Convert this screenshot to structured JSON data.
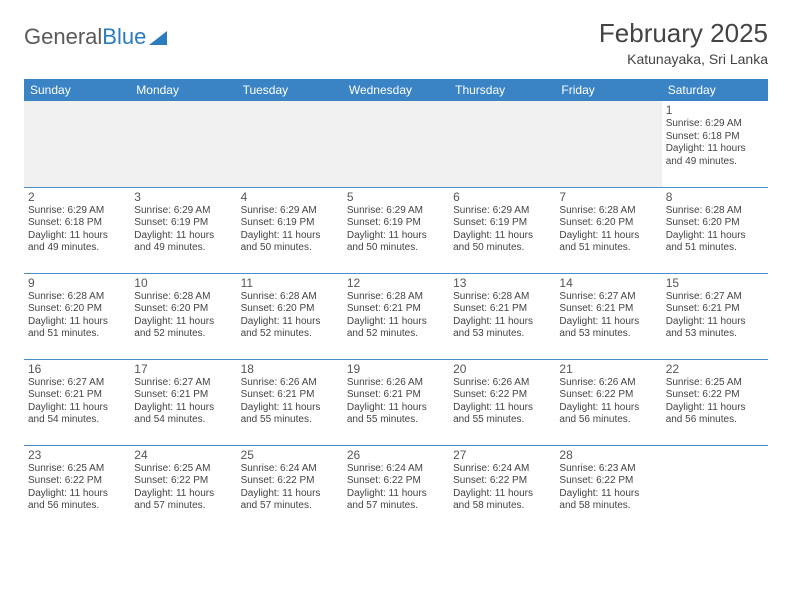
{
  "brand": {
    "part1": "General",
    "part2": "Blue"
  },
  "title": "February 2025",
  "location": "Katunayaka, Sri Lanka",
  "colors": {
    "header_bg": "#3a84c5",
    "header_text": "#ffffff",
    "row_border": "#4b8fc6",
    "empty_bg": "#f0f0f0",
    "page_bg": "#ffffff",
    "text": "#333333",
    "brand_gray": "#5a5a5a",
    "brand_blue": "#2b7bbf"
  },
  "layout": {
    "columns": 7,
    "rows": 5,
    "daynum_fontsize": 12,
    "info_fontsize": 10,
    "header_fontsize": 12,
    "title_fontsize": 26,
    "location_fontsize": 14
  },
  "weekdays": [
    "Sunday",
    "Monday",
    "Tuesday",
    "Wednesday",
    "Thursday",
    "Friday",
    "Saturday"
  ],
  "weeks": [
    [
      null,
      null,
      null,
      null,
      null,
      null,
      {
        "d": "1",
        "sr": "Sunrise: 6:29 AM",
        "ss": "Sunset: 6:18 PM",
        "dl": "Daylight: 11 hours and 49 minutes."
      }
    ],
    [
      {
        "d": "2",
        "sr": "Sunrise: 6:29 AM",
        "ss": "Sunset: 6:18 PM",
        "dl": "Daylight: 11 hours and 49 minutes."
      },
      {
        "d": "3",
        "sr": "Sunrise: 6:29 AM",
        "ss": "Sunset: 6:19 PM",
        "dl": "Daylight: 11 hours and 49 minutes."
      },
      {
        "d": "4",
        "sr": "Sunrise: 6:29 AM",
        "ss": "Sunset: 6:19 PM",
        "dl": "Daylight: 11 hours and 50 minutes."
      },
      {
        "d": "5",
        "sr": "Sunrise: 6:29 AM",
        "ss": "Sunset: 6:19 PM",
        "dl": "Daylight: 11 hours and 50 minutes."
      },
      {
        "d": "6",
        "sr": "Sunrise: 6:29 AM",
        "ss": "Sunset: 6:19 PM",
        "dl": "Daylight: 11 hours and 50 minutes."
      },
      {
        "d": "7",
        "sr": "Sunrise: 6:28 AM",
        "ss": "Sunset: 6:20 PM",
        "dl": "Daylight: 11 hours and 51 minutes."
      },
      {
        "d": "8",
        "sr": "Sunrise: 6:28 AM",
        "ss": "Sunset: 6:20 PM",
        "dl": "Daylight: 11 hours and 51 minutes."
      }
    ],
    [
      {
        "d": "9",
        "sr": "Sunrise: 6:28 AM",
        "ss": "Sunset: 6:20 PM",
        "dl": "Daylight: 11 hours and 51 minutes."
      },
      {
        "d": "10",
        "sr": "Sunrise: 6:28 AM",
        "ss": "Sunset: 6:20 PM",
        "dl": "Daylight: 11 hours and 52 minutes."
      },
      {
        "d": "11",
        "sr": "Sunrise: 6:28 AM",
        "ss": "Sunset: 6:20 PM",
        "dl": "Daylight: 11 hours and 52 minutes."
      },
      {
        "d": "12",
        "sr": "Sunrise: 6:28 AM",
        "ss": "Sunset: 6:21 PM",
        "dl": "Daylight: 11 hours and 52 minutes."
      },
      {
        "d": "13",
        "sr": "Sunrise: 6:28 AM",
        "ss": "Sunset: 6:21 PM",
        "dl": "Daylight: 11 hours and 53 minutes."
      },
      {
        "d": "14",
        "sr": "Sunrise: 6:27 AM",
        "ss": "Sunset: 6:21 PM",
        "dl": "Daylight: 11 hours and 53 minutes."
      },
      {
        "d": "15",
        "sr": "Sunrise: 6:27 AM",
        "ss": "Sunset: 6:21 PM",
        "dl": "Daylight: 11 hours and 53 minutes."
      }
    ],
    [
      {
        "d": "16",
        "sr": "Sunrise: 6:27 AM",
        "ss": "Sunset: 6:21 PM",
        "dl": "Daylight: 11 hours and 54 minutes."
      },
      {
        "d": "17",
        "sr": "Sunrise: 6:27 AM",
        "ss": "Sunset: 6:21 PM",
        "dl": "Daylight: 11 hours and 54 minutes."
      },
      {
        "d": "18",
        "sr": "Sunrise: 6:26 AM",
        "ss": "Sunset: 6:21 PM",
        "dl": "Daylight: 11 hours and 55 minutes."
      },
      {
        "d": "19",
        "sr": "Sunrise: 6:26 AM",
        "ss": "Sunset: 6:21 PM",
        "dl": "Daylight: 11 hours and 55 minutes."
      },
      {
        "d": "20",
        "sr": "Sunrise: 6:26 AM",
        "ss": "Sunset: 6:22 PM",
        "dl": "Daylight: 11 hours and 55 minutes."
      },
      {
        "d": "21",
        "sr": "Sunrise: 6:26 AM",
        "ss": "Sunset: 6:22 PM",
        "dl": "Daylight: 11 hours and 56 minutes."
      },
      {
        "d": "22",
        "sr": "Sunrise: 6:25 AM",
        "ss": "Sunset: 6:22 PM",
        "dl": "Daylight: 11 hours and 56 minutes."
      }
    ],
    [
      {
        "d": "23",
        "sr": "Sunrise: 6:25 AM",
        "ss": "Sunset: 6:22 PM",
        "dl": "Daylight: 11 hours and 56 minutes."
      },
      {
        "d": "24",
        "sr": "Sunrise: 6:25 AM",
        "ss": "Sunset: 6:22 PM",
        "dl": "Daylight: 11 hours and 57 minutes."
      },
      {
        "d": "25",
        "sr": "Sunrise: 6:24 AM",
        "ss": "Sunset: 6:22 PM",
        "dl": "Daylight: 11 hours and 57 minutes."
      },
      {
        "d": "26",
        "sr": "Sunrise: 6:24 AM",
        "ss": "Sunset: 6:22 PM",
        "dl": "Daylight: 11 hours and 57 minutes."
      },
      {
        "d": "27",
        "sr": "Sunrise: 6:24 AM",
        "ss": "Sunset: 6:22 PM",
        "dl": "Daylight: 11 hours and 58 minutes."
      },
      {
        "d": "28",
        "sr": "Sunrise: 6:23 AM",
        "ss": "Sunset: 6:22 PM",
        "dl": "Daylight: 11 hours and 58 minutes."
      },
      null
    ]
  ]
}
